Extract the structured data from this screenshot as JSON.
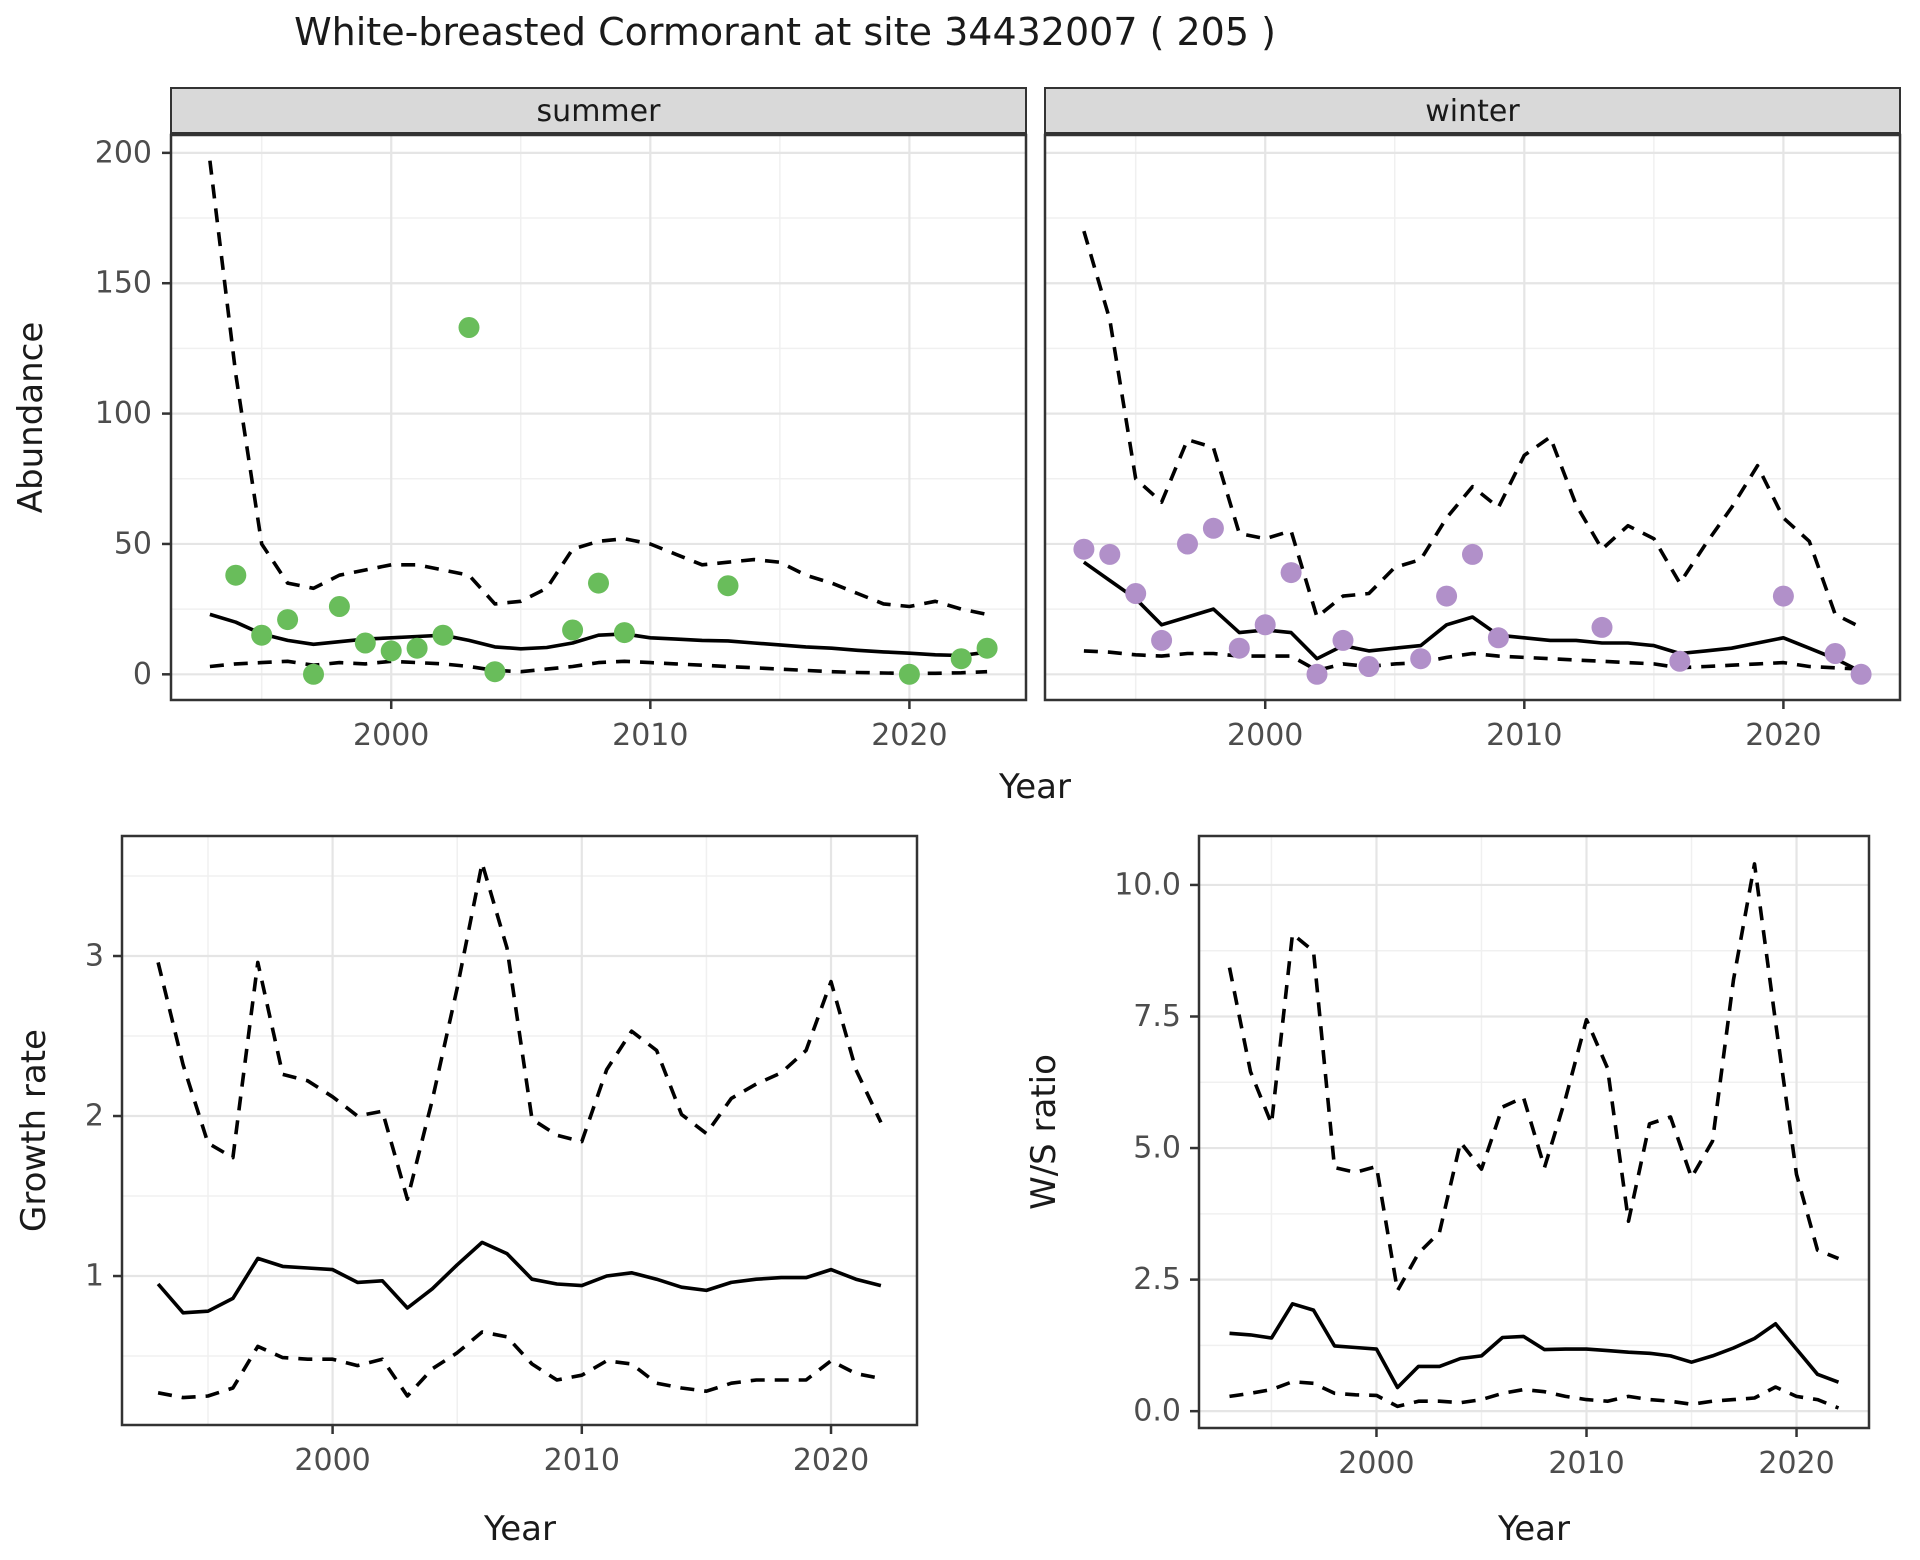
{
  "title": "White-breasted Cormorant at site 34432007 ( 205 )",
  "colors": {
    "summer_point": "#69bd5b",
    "winter_point": "#b190c9",
    "line": "#000000",
    "grid_major": "#e5e5e5",
    "grid_minor": "#f0f0f0",
    "panel_border": "#333333",
    "strip_bg": "#d9d9d9",
    "tick_text": "#4d4d4d",
    "title_text": "#1a1a1a"
  },
  "chart_data": [
    {
      "id": "abundance",
      "type": "line+scatter",
      "xlabel": "Year",
      "ylabel": "Abundance",
      "xlim": [
        1991.5,
        2024.5
      ],
      "ylim": [
        -9.85,
        206.85
      ],
      "xticks": {
        "major": [
          2000,
          2010,
          2020
        ],
        "minor": [
          1995,
          2005,
          2015
        ],
        "labels": [
          "2000",
          "2010",
          "2020"
        ]
      },
      "yticks": {
        "major": [
          0,
          50,
          100,
          150,
          200
        ],
        "minor": [
          25,
          75,
          125,
          175
        ],
        "labels": [
          "0",
          "50",
          "100",
          "150",
          "200"
        ]
      },
      "x": [
        1993,
        1994,
        1995,
        1996,
        1997,
        1998,
        1999,
        2000,
        2001,
        2002,
        2003,
        2004,
        2005,
        2006,
        2007,
        2008,
        2009,
        2010,
        2011,
        2012,
        2013,
        2014,
        2015,
        2016,
        2017,
        2018,
        2019,
        2020,
        2021,
        2022,
        2023
      ],
      "facets": [
        {
          "label": "summer",
          "point_color": "summer_point",
          "series": [
            {
              "name": "mean",
              "style": "solid",
              "values": [
                23,
                20,
                15.5,
                13,
                11.5,
                12.5,
                13.5,
                14,
                14.5,
                15,
                13,
                10.5,
                9.8,
                10.3,
                12,
                15,
                15.5,
                14,
                13.5,
                13,
                12.8,
                12,
                11.3,
                10.5,
                10,
                9.2,
                8.6,
                8.1,
                7.5,
                7.2,
                8.5
              ]
            },
            {
              "name": "upper_ci",
              "style": "dashed",
              "values": [
                197,
                115,
                50,
                35,
                33,
                38,
                40,
                42,
                42,
                40,
                38,
                27,
                28,
                33,
                48,
                51,
                52,
                50,
                46,
                42,
                43,
                44,
                43,
                38,
                35,
                31,
                27,
                26,
                28,
                25,
                23
              ]
            },
            {
              "name": "lower_ci",
              "style": "dashed",
              "values": [
                3,
                4,
                4.5,
                5,
                3.5,
                4.5,
                4,
                5,
                4.5,
                4,
                3,
                1.5,
                1,
                2,
                3,
                4.5,
                5,
                4.5,
                4,
                3.5,
                3,
                2.5,
                2,
                1.5,
                1,
                0.7,
                0.5,
                0.3,
                0.4,
                0.6,
                1
              ]
            }
          ],
          "points": [
            [
              1994,
              38
            ],
            [
              1995,
              15
            ],
            [
              1996,
              21
            ],
            [
              1997,
              0
            ],
            [
              1998,
              26
            ],
            [
              1999,
              12
            ],
            [
              2000,
              9
            ],
            [
              2001,
              10
            ],
            [
              2002,
              15
            ],
            [
              2003,
              133
            ],
            [
              2004,
              1
            ],
            [
              2007,
              17
            ],
            [
              2008,
              35
            ],
            [
              2009,
              16
            ],
            [
              2013,
              34
            ],
            [
              2020,
              0
            ],
            [
              2022,
              6
            ],
            [
              2023,
              10
            ]
          ]
        },
        {
          "label": "winter",
          "point_color": "winter_point",
          "series": [
            {
              "name": "mean",
              "style": "solid",
              "values": [
                43,
                36,
                29,
                19,
                22,
                25,
                16,
                17,
                16,
                6,
                11,
                9,
                10,
                11,
                19,
                22,
                15,
                14,
                13,
                13,
                12,
                12,
                11,
                8,
                9,
                10,
                12,
                14,
                10,
                6,
                1
              ]
            },
            {
              "name": "upper_ci",
              "style": "dashed",
              "values": [
                170,
                136,
                75,
                66,
                90,
                87,
                54,
                52,
                55,
                22,
                30,
                31,
                41,
                44,
                60,
                72,
                64,
                84,
                91,
                65,
                48,
                57,
                52,
                35,
                50,
                64,
                80,
                60,
                51,
                23,
                18
              ]
            },
            {
              "name": "lower_ci",
              "style": "dashed",
              "values": [
                9,
                8.5,
                7.5,
                7,
                8,
                8,
                7,
                7,
                7,
                1.5,
                4,
                3,
                4,
                4.5,
                6.5,
                8,
                7,
                6.5,
                6,
                5.5,
                5,
                4.5,
                4,
                2.5,
                3,
                3.5,
                4,
                4.5,
                3,
                2.5,
                2
              ]
            }
          ],
          "points": [
            [
              1993,
              48
            ],
            [
              1994,
              46
            ],
            [
              1995,
              31
            ],
            [
              1996,
              13
            ],
            [
              1997,
              50
            ],
            [
              1998,
              56
            ],
            [
              1999,
              10
            ],
            [
              2000,
              19
            ],
            [
              2001,
              39
            ],
            [
              2002,
              0
            ],
            [
              2003,
              13
            ],
            [
              2004,
              3
            ],
            [
              2006,
              6
            ],
            [
              2007,
              30
            ],
            [
              2008,
              46
            ],
            [
              2009,
              14
            ],
            [
              2013,
              18
            ],
            [
              2016,
              5
            ],
            [
              2020,
              30
            ],
            [
              2022,
              8
            ],
            [
              2023,
              0
            ]
          ]
        }
      ]
    },
    {
      "id": "growth_rate",
      "type": "line",
      "xlabel": "Year",
      "ylabel": "Growth rate",
      "xlim": [
        1991.55,
        2023.45
      ],
      "ylim": [
        0.069,
        3.75
      ],
      "xticks": {
        "major": [
          2000,
          2010,
          2020
        ],
        "minor": [
          1995,
          2005,
          2015
        ],
        "labels": [
          "2000",
          "2010",
          "2020"
        ]
      },
      "yticks": {
        "major": [
          1,
          2,
          3
        ],
        "minor": [
          0.5,
          1.5,
          2.5,
          3.5
        ],
        "labels": [
          "1",
          "2",
          "3"
        ]
      },
      "x": [
        1993,
        1994,
        1995,
        1996,
        1997,
        1998,
        1999,
        2000,
        2001,
        2002,
        2003,
        2004,
        2005,
        2006,
        2007,
        2008,
        2009,
        2010,
        2011,
        2012,
        2013,
        2014,
        2015,
        2016,
        2017,
        2018,
        2019,
        2020,
        2021,
        2022
      ],
      "facets": [
        {
          "label": "",
          "point_color": "summer_point",
          "series": [
            {
              "name": "mean",
              "style": "solid",
              "values": [
                0.95,
                0.77,
                0.78,
                0.86,
                1.11,
                1.06,
                1.05,
                1.04,
                0.96,
                0.97,
                0.8,
                0.92,
                1.07,
                1.21,
                1.14,
                0.98,
                0.95,
                0.94,
                1.0,
                1.02,
                0.98,
                0.93,
                0.91,
                0.96,
                0.98,
                0.99,
                0.99,
                1.04,
                0.98,
                0.94
              ]
            },
            {
              "name": "upper_ci",
              "style": "dashed",
              "values": [
                2.96,
                2.32,
                1.83,
                1.74,
                2.96,
                2.26,
                2.22,
                2.12,
                2.0,
                2.03,
                1.48,
                2.1,
                2.8,
                3.58,
                3.05,
                1.98,
                1.88,
                1.84,
                2.29,
                2.53,
                2.41,
                2.01,
                1.89,
                2.11,
                2.2,
                2.27,
                2.41,
                2.84,
                2.29,
                1.96
              ]
            },
            {
              "name": "lower_ci",
              "style": "dashed",
              "values": [
                0.27,
                0.24,
                0.25,
                0.3,
                0.56,
                0.49,
                0.48,
                0.48,
                0.44,
                0.48,
                0.25,
                0.42,
                0.52,
                0.65,
                0.62,
                0.45,
                0.35,
                0.38,
                0.47,
                0.45,
                0.33,
                0.3,
                0.28,
                0.33,
                0.35,
                0.35,
                0.35,
                0.47,
                0.39,
                0.36
              ]
            }
          ],
          "points": []
        }
      ]
    },
    {
      "id": "ws_ratio",
      "type": "line",
      "xlabel": "Year",
      "ylabel": "W/S ratio",
      "xlim": [
        1991.55,
        2023.45
      ],
      "ylim": [
        -0.32,
        10.93
      ],
      "xticks": {
        "major": [
          2000,
          2010,
          2020
        ],
        "minor": [
          1995,
          2005,
          2015
        ],
        "labels": [
          "2000",
          "2010",
          "2020"
        ]
      },
      "yticks": {
        "major": [
          0,
          2.5,
          5,
          7.5,
          10
        ],
        "minor": [
          1.25,
          3.75,
          6.25,
          8.75
        ],
        "labels": [
          "0.0",
          "2.5",
          "5.0",
          "7.5",
          "10.0"
        ]
      },
      "x": [
        1993,
        1994,
        1995,
        1996,
        1997,
        1998,
        1999,
        2000,
        2001,
        2002,
        2003,
        2004,
        2005,
        2006,
        2007,
        2008,
        2009,
        2010,
        2011,
        2012,
        2013,
        2014,
        2015,
        2016,
        2017,
        2018,
        2019,
        2020,
        2021,
        2022
      ],
      "facets": [
        {
          "label": "",
          "point_color": "winter_point",
          "series": [
            {
              "name": "mean",
              "style": "solid",
              "values": [
                1.48,
                1.45,
                1.39,
                2.04,
                1.92,
                1.24,
                1.21,
                1.18,
                0.45,
                0.85,
                0.85,
                1.0,
                1.05,
                1.4,
                1.42,
                1.17,
                1.18,
                1.18,
                1.15,
                1.12,
                1.1,
                1.05,
                0.93,
                1.05,
                1.2,
                1.38,
                1.66,
                1.18,
                0.7,
                0.55
              ]
            },
            {
              "name": "upper_ci",
              "style": "dashed",
              "values": [
                8.43,
                6.45,
                5.46,
                9.07,
                8.74,
                4.63,
                4.54,
                4.65,
                2.29,
                3.0,
                3.4,
                5.11,
                4.6,
                5.78,
                5.96,
                4.63,
                5.94,
                7.44,
                6.52,
                3.61,
                5.46,
                5.59,
                4.44,
                5.13,
                8.2,
                10.4,
                7.4,
                4.5,
                3.06,
                2.9
              ]
            },
            {
              "name": "lower_ci",
              "style": "dashed",
              "values": [
                0.28,
                0.34,
                0.41,
                0.56,
                0.53,
                0.34,
                0.31,
                0.3,
                0.09,
                0.19,
                0.19,
                0.16,
                0.22,
                0.34,
                0.41,
                0.37,
                0.28,
                0.22,
                0.19,
                0.28,
                0.22,
                0.19,
                0.13,
                0.19,
                0.22,
                0.25,
                0.46,
                0.28,
                0.22,
                0.06
              ]
            }
          ],
          "points": []
        }
      ]
    }
  ]
}
